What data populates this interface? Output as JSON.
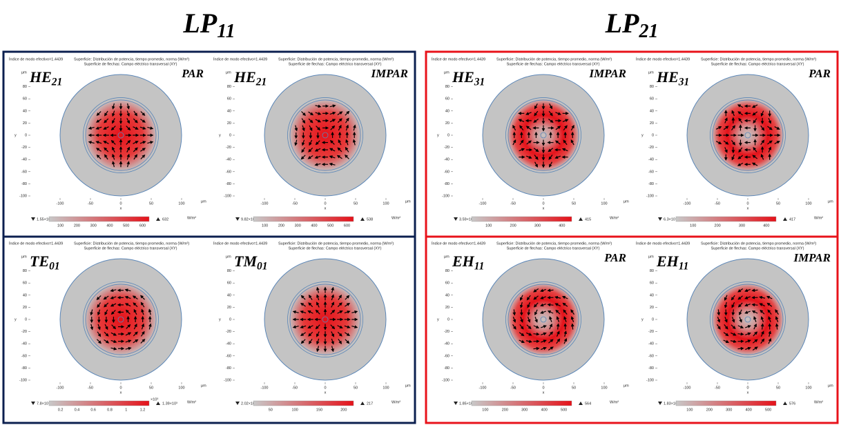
{
  "panel_header": {
    "index": "Índice de modo efectivo=1.4439",
    "surface": "Superficie: Distribución de potencia, tiempo promedio, norma (W/m²)",
    "arrows": "Superficie de flechas: Campo eléctrico transversal (XY)"
  },
  "axes": {
    "yticks": [
      80,
      60,
      40,
      20,
      0,
      -20,
      -40,
      -60,
      -80,
      -100
    ],
    "xticks": [
      -100,
      -50,
      0,
      50,
      100
    ],
    "unit": "μm",
    "x_label": "x",
    "y_label": "y"
  },
  "colorbar_unit": "W/m²",
  "groups": [
    {
      "title": {
        "base": "LP",
        "sub": "11"
      },
      "panels": [
        {
          "mode": {
            "base": "HE",
            "sub": "21"
          },
          "parity": "PAR",
          "min": "1.55×10⁻¹²",
          "max": "632",
          "ticks": [
            "100",
            "200",
            "300",
            "400",
            "500",
            "600"
          ]
        },
        {
          "mode": {
            "base": "HE",
            "sub": "21"
          },
          "parity": "IMPAR",
          "min": "9.82×10⁻¹²",
          "max": "538",
          "ticks": [
            "100",
            "200",
            "300",
            "400",
            "500",
            "600"
          ]
        },
        {
          "mode": {
            "base": "TE",
            "sub": "01"
          },
          "min": "7.8×10⁻¹⁶",
          "max": "1.39×10³",
          "ticks": [
            "0.2",
            "0.4",
            "0.6",
            "0.8",
            "1",
            "1.2"
          ],
          "ticks_exponent": "×10³"
        },
        {
          "mode": {
            "base": "TM",
            "sub": "01"
          },
          "min": "2.02×10⁻¹²",
          "max": "217",
          "ticks": [
            "50",
            "100",
            "150",
            "200"
          ]
        }
      ]
    },
    {
      "title": {
        "base": "LP",
        "sub": "21"
      },
      "panels": [
        {
          "mode": {
            "base": "HE",
            "sub": "31"
          },
          "parity": "IMPAR",
          "min": "3.59×10⁻¹²",
          "max": "415",
          "ticks": [
            "100",
            "200",
            "300",
            "400"
          ]
        },
        {
          "mode": {
            "base": "HE",
            "sub": "31"
          },
          "parity": "PAR",
          "min": "6.3×10⁻¹³",
          "max": "417",
          "ticks": [
            "100",
            "200",
            "300",
            "400"
          ]
        },
        {
          "mode": {
            "base": "EH",
            "sub": "11"
          },
          "parity": "PAR",
          "min": "1.85×10⁻¹⁴",
          "max": "564",
          "ticks": [
            "100",
            "200",
            "300",
            "400",
            "500"
          ]
        },
        {
          "mode": {
            "base": "EH",
            "sub": "11"
          },
          "parity": "IMPAR",
          "min": "1.83×10⁻¹⁴",
          "max": "576",
          "ticks": [
            "100",
            "200",
            "300",
            "400",
            "500"
          ]
        }
      ]
    }
  ]
}
